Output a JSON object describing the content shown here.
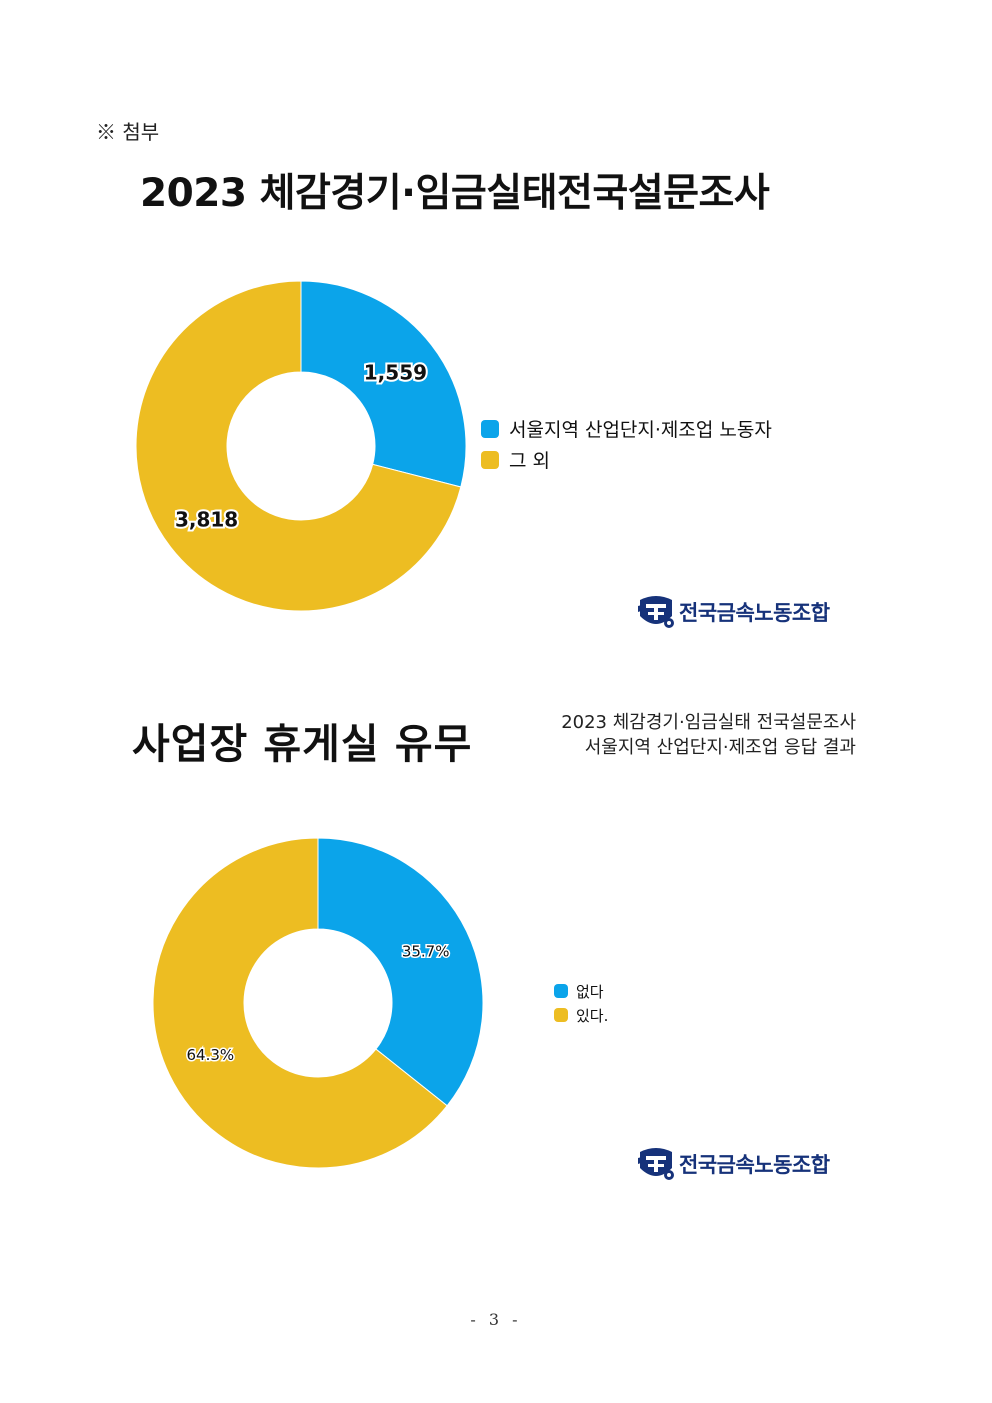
{
  "attachment_label": "※ 첨부",
  "main_title": "2023 체감경기·임금실태전국설문조사",
  "section_title": "사업장 휴게실 유무",
  "subtitle": {
    "line1": "2023 체감경기·임금실태 전국설문조사",
    "line2": "서울지역 산업단지·제조업 응답 결과"
  },
  "logo_text": "전국금속노동조합",
  "logo_icon": "union-emblem-icon",
  "page_number": "- 3 -",
  "colors": {
    "blue": "#0ba4ea",
    "gold": "#edbd22",
    "logo": "#16327a"
  },
  "chart_data": [
    {
      "type": "pie",
      "variant": "donut",
      "categories": [
        "서울지역 산업단지·제조업 노동자",
        "그 외"
      ],
      "values": [
        1559,
        3818
      ],
      "data_labels": [
        "1,559",
        "3,818"
      ],
      "colors": [
        "#0ba4ea",
        "#edbd22"
      ],
      "legend": "right"
    },
    {
      "type": "pie",
      "variant": "donut",
      "categories": [
        "없다",
        "있다."
      ],
      "values": [
        35.7,
        64.3
      ],
      "data_labels": [
        "35.7%",
        "64.3%"
      ],
      "colors": [
        "#0ba4ea",
        "#edbd22"
      ],
      "legend": "right"
    }
  ]
}
